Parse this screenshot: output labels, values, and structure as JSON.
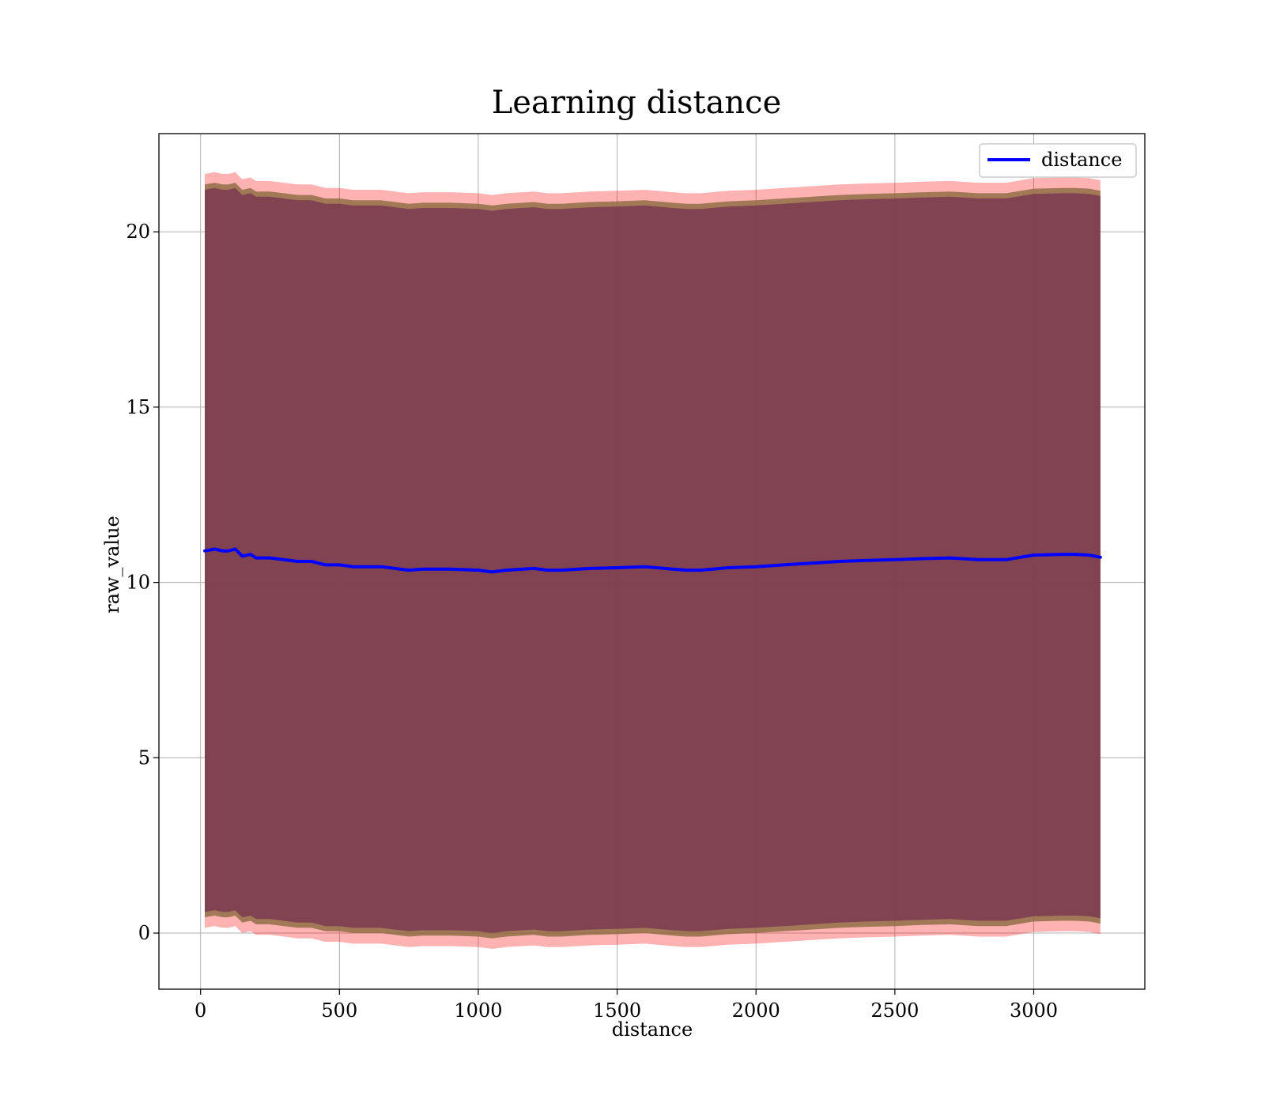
{
  "chart_data": {
    "type": "line",
    "title": "Learning distance",
    "xlabel": "distance",
    "ylabel": "raw_value",
    "xlim": [
      -150,
      3400
    ],
    "ylim": [
      -1.6,
      22.8
    ],
    "xticks": [
      0,
      500,
      1000,
      1500,
      2000,
      2500,
      3000
    ],
    "yticks": [
      0,
      5,
      10,
      15,
      20
    ],
    "grid": true,
    "legend_position": "top-right",
    "colors": {
      "line": "#0000ff",
      "outer_band": "#ff0000",
      "middle_band": "#8b6a3e",
      "inner_band": "#7b3a50",
      "grid": "#b0b0b0"
    },
    "series": [
      {
        "name": "distance",
        "x": [
          15,
          50,
          80,
          100,
          125,
          150,
          180,
          200,
          250,
          300,
          350,
          400,
          450,
          500,
          550,
          600,
          650,
          700,
          750,
          800,
          900,
          1000,
          1050,
          1100,
          1200,
          1250,
          1300,
          1400,
          1500,
          1600,
          1700,
          1750,
          1800,
          1900,
          2000,
          2100,
          2200,
          2300,
          2400,
          2500,
          2600,
          2700,
          2800,
          2900,
          3000,
          3100,
          3150,
          3200,
          3240
        ],
        "y": [
          10.9,
          10.95,
          10.9,
          10.9,
          10.95,
          10.75,
          10.8,
          10.7,
          10.7,
          10.65,
          10.6,
          10.6,
          10.5,
          10.5,
          10.45,
          10.45,
          10.45,
          10.4,
          10.35,
          10.38,
          10.38,
          10.35,
          10.3,
          10.35,
          10.4,
          10.35,
          10.35,
          10.4,
          10.42,
          10.45,
          10.38,
          10.35,
          10.35,
          10.42,
          10.45,
          10.5,
          10.55,
          10.6,
          10.63,
          10.65,
          10.68,
          10.7,
          10.65,
          10.65,
          10.78,
          10.8,
          10.8,
          10.78,
          10.72
        ]
      }
    ],
    "bands": [
      {
        "offset_lower": -10.75,
        "offset_upper": 10.75
      },
      {
        "offset_lower": -10.45,
        "offset_upper": 10.45
      },
      {
        "offset_lower": -10.3,
        "offset_upper": 10.3
      }
    ]
  }
}
